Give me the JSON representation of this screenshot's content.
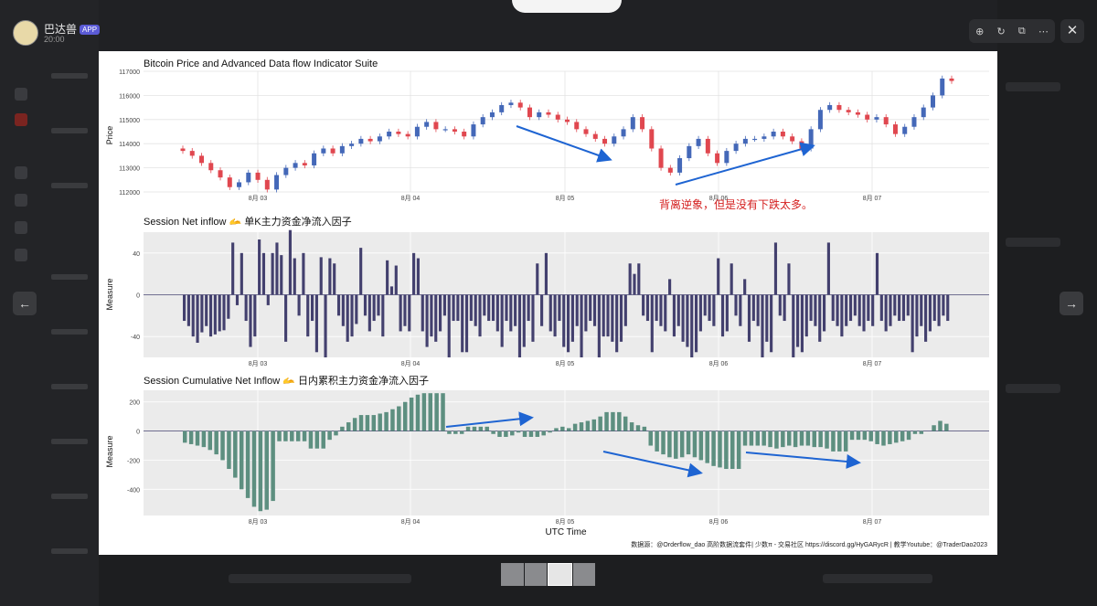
{
  "post": {
    "author": "巴达兽",
    "badge": "APP",
    "time": "20:00"
  },
  "viewer": {
    "close_label": "✕",
    "prev_label": "←",
    "next_label": "→"
  },
  "toolbar": {
    "zoom_icon": "zoom-in-icon",
    "rotate_icon": "rotate-icon",
    "open_icon": "open-external-icon",
    "more_icon": "more-icon"
  },
  "figure": {
    "panel1_title": "Bitcoin Price and Advanced Data flow Indicator Suite",
    "panel1_ylabel": "Price",
    "panel2_title": "Session Net inflow 🫴 单K主力资金净流入因子",
    "panel2_ylabel": "Measure",
    "panel3_title": "Session Cumulative Net Inflow 🫴 日内累积主力资金净流入因子",
    "panel3_ylabel": "Measure",
    "xlabel": "UTC Time",
    "annotation": "背离逆象，但是没有下跌太多。",
    "footer": "数据源：@Orderflow_dao 高阶数据流套件| 少数π - 交易社区 https://discord.gg/HyGARycR | 教学Youtube：@TraderDao2023",
    "accent_color": "#1e64d2"
  },
  "chart_data": [
    {
      "type": "candlestick",
      "ylim": [
        112000,
        117000
      ],
      "yticks": [
        "112000",
        "113000",
        "114000",
        "115000",
        "116000",
        "117000"
      ],
      "xticks": [
        "8月 03",
        "8月 04",
        "8月 05",
        "8月 06",
        "8月 07"
      ],
      "up_color": "#4468b8",
      "down_color": "#e0474f",
      "close": [
        113700,
        113500,
        113200,
        112900,
        112600,
        112200,
        112400,
        112800,
        112500,
        112100,
        112700,
        113000,
        113200,
        113100,
        113600,
        113800,
        113600,
        113900,
        114000,
        114200,
        114100,
        114300,
        114500,
        114400,
        114300,
        114700,
        114900,
        114600,
        114600,
        114500,
        114300,
        114800,
        115100,
        115300,
        115600,
        115700,
        115500,
        115100,
        115300,
        115200,
        115000,
        114900,
        114600,
        114400,
        114200,
        114000,
        114300,
        114600,
        115100,
        114600,
        113800,
        113000,
        112800,
        113400,
        113900,
        114200,
        113600,
        113200,
        113700,
        114000,
        114200,
        114200,
        114300,
        114500,
        114300,
        114100,
        113800,
        114600,
        115400,
        115600,
        115400,
        115300,
        115200,
        115000,
        115100,
        114800,
        114400,
        114700,
        115100,
        115500,
        116000,
        116700,
        116600
      ]
    },
    {
      "type": "bar",
      "ylim": [
        -60,
        60
      ],
      "yticks": [
        "-40",
        "0",
        "40"
      ],
      "xticks": [
        "8月 03",
        "8月 04",
        "8月 05",
        "8月 06",
        "8月 07"
      ],
      "color": "#43406e",
      "values": [
        -25,
        -30,
        -40,
        -46,
        -36,
        -30,
        -40,
        -38,
        -35,
        -34,
        -23,
        50,
        -10,
        40,
        -25,
        -50,
        -40,
        53,
        40,
        -10,
        40,
        50,
        38,
        -45,
        62,
        35,
        -20,
        40,
        -40,
        -25,
        -55,
        36,
        -60,
        35,
        30,
        -20,
        -30,
        -45,
        -40,
        -28,
        45,
        -20,
        -35,
        -25,
        -20,
        -40,
        33,
        8,
        28,
        -35,
        -30,
        -35,
        40,
        35,
        -35,
        -50,
        -40,
        -45,
        -35,
        -20,
        -60,
        -25,
        -25,
        -55,
        -55,
        -25,
        -30,
        -40,
        -20,
        -25,
        -25,
        -35,
        -50,
        -25,
        -35,
        -30,
        -60,
        -50,
        -25,
        -45,
        30,
        -30,
        40,
        -35,
        -40,
        -25,
        -50,
        -55,
        -45,
        -30,
        -60,
        -35,
        -25,
        -30,
        -60,
        -40,
        -40,
        -45,
        -55,
        -45,
        -30,
        30,
        20,
        30,
        -20,
        -25,
        -55,
        -25,
        -30,
        -35,
        15,
        -40,
        -30,
        -45,
        -50,
        -60,
        -55,
        -35,
        -20,
        -25,
        -30,
        35,
        -40,
        -35,
        30,
        -20,
        -30,
        15,
        -45,
        -25,
        -30,
        -60,
        -45,
        -55,
        50,
        -20,
        -25,
        30,
        -60,
        -50,
        -55,
        -40,
        -25,
        -30,
        -45,
        -35,
        50,
        -25,
        -30,
        -40,
        -30,
        -25,
        -20,
        -30,
        -35,
        -25,
        -30,
        40,
        -25,
        -35,
        -30,
        -20,
        -25,
        -25,
        -20,
        -55,
        -40,
        -30,
        -45,
        -35,
        -25,
        -30,
        -20,
        -25
      ]
    },
    {
      "type": "bar",
      "ylim": [
        -580,
        280
      ],
      "yticks": [
        "-400",
        "-200",
        "0",
        "200"
      ],
      "xticks": [
        "8月 03",
        "8月 04",
        "8月 05",
        "8月 06",
        "8月 07"
      ],
      "color": "#5d8f80",
      "values": [
        -80,
        -90,
        -100,
        -110,
        -130,
        -160,
        -200,
        -260,
        -320,
        -400,
        -460,
        -520,
        -550,
        -540,
        -480,
        -70,
        -70,
        -70,
        -70,
        -70,
        -120,
        -120,
        -120,
        -60,
        -30,
        30,
        60,
        90,
        110,
        110,
        110,
        120,
        130,
        150,
        170,
        200,
        230,
        250,
        260,
        260,
        260,
        260,
        -20,
        -20,
        -20,
        30,
        30,
        30,
        30,
        -20,
        -40,
        -40,
        -30,
        -10,
        -40,
        -40,
        -40,
        -30,
        -10,
        20,
        30,
        20,
        50,
        60,
        70,
        80,
        100,
        130,
        130,
        130,
        100,
        60,
        40,
        30,
        -100,
        -140,
        -160,
        -180,
        -190,
        -180,
        -160,
        -180,
        -200,
        -220,
        -240,
        -250,
        -260,
        -260,
        -260,
        -100,
        -100,
        -100,
        -100,
        -110,
        -120,
        -110,
        -100,
        -110,
        -100,
        -100,
        -110,
        -110,
        -120,
        -140,
        -140,
        -140,
        -60,
        -60,
        -60,
        -70,
        -90,
        -100,
        -90,
        -80,
        -70,
        -60,
        -20,
        -20,
        0,
        40,
        70,
        50
      ]
    }
  ]
}
